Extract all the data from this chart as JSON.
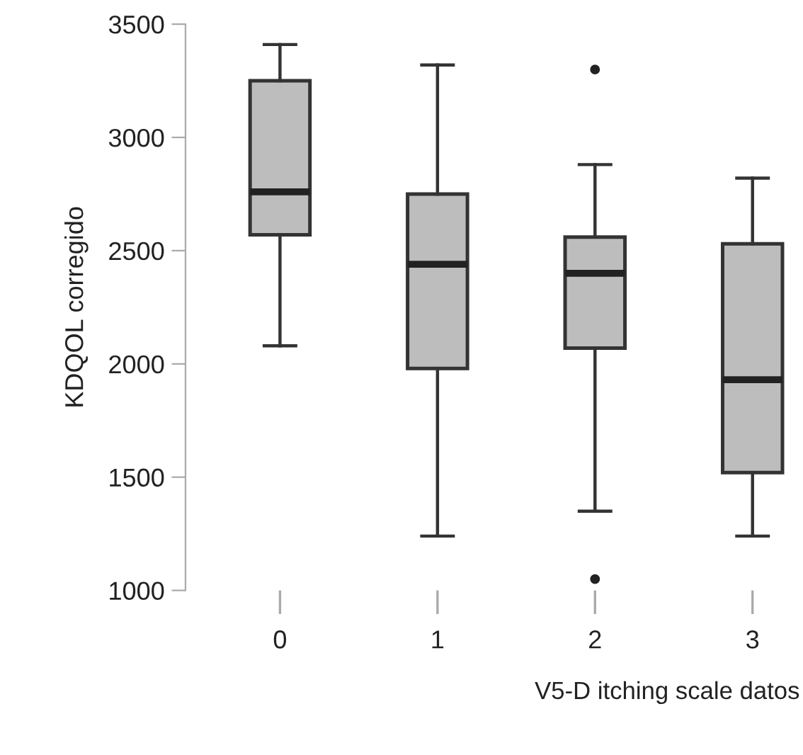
{
  "chart_data": {
    "type": "box",
    "xlabel": "V5-D itching scale datos",
    "ylabel": "KDQOL corregido",
    "categories": [
      "0",
      "1",
      "2",
      "3"
    ],
    "color": "#bdbdbd",
    "boxes": [
      {
        "low": 2080,
        "q1": 2570,
        "median": 2760,
        "q3": 3250,
        "high": 3410
      },
      {
        "low": 1240,
        "q1": 1980,
        "median": 2440,
        "q3": 2750,
        "high": 3320
      },
      {
        "low": 1350,
        "q1": 2070,
        "median": 2400,
        "q3": 2560,
        "high": 2880,
        "outliers": [
          3300,
          1050
        ]
      },
      {
        "low": 1240,
        "q1": 1520,
        "median": 1930,
        "q3": 2530,
        "high": 2820
      }
    ],
    "ylim": [
      1000,
      3500
    ],
    "yticks": [
      1000,
      1500,
      2000,
      2500,
      3000,
      3500
    ],
    "grid": false
  }
}
